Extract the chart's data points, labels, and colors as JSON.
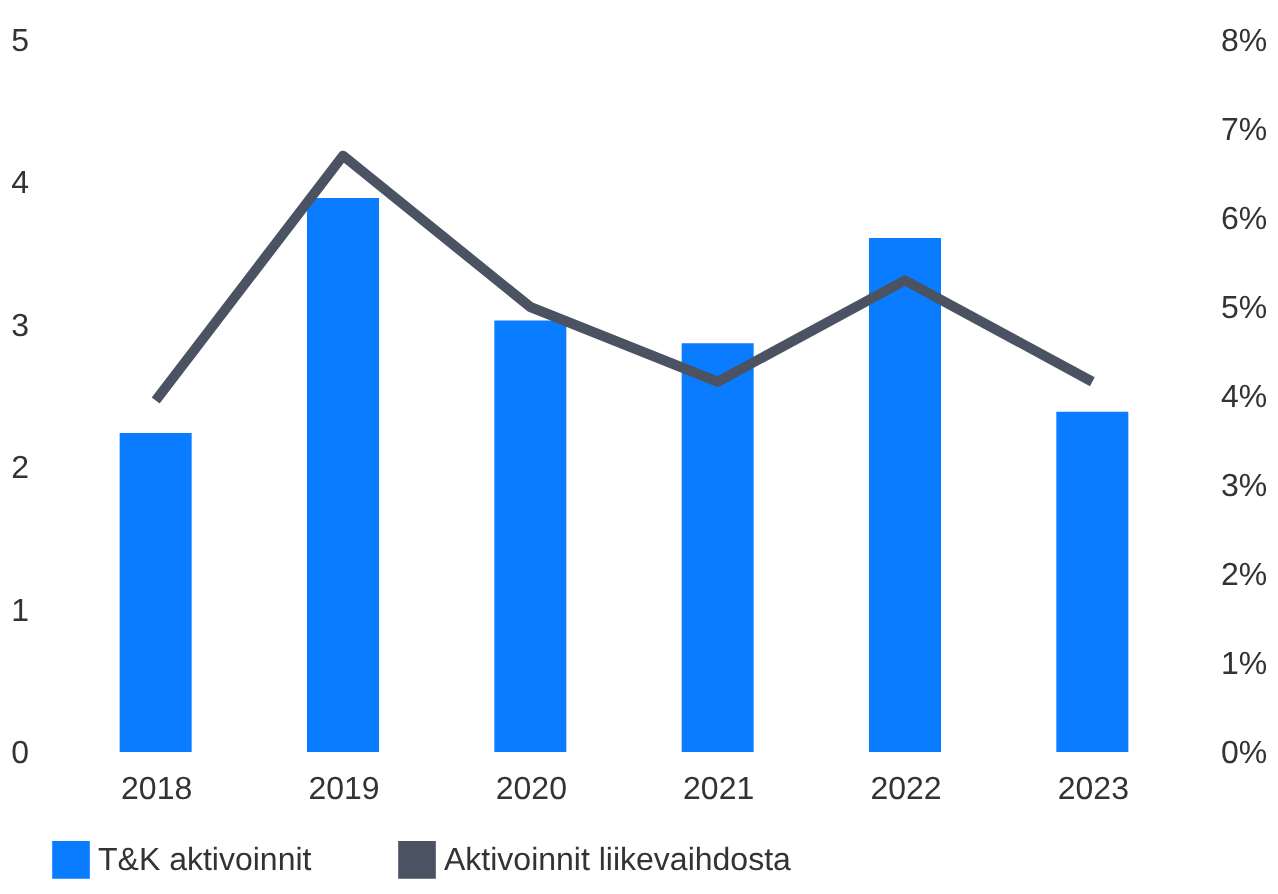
{
  "chart_data": {
    "type": "bar",
    "categories": [
      "2018",
      "2019",
      "2020",
      "2021",
      "2022",
      "2023"
    ],
    "series": [
      {
        "name": "T&K aktivoinnit",
        "color": "#0a7cff",
        "values": [
          2.24,
          3.89,
          3.03,
          2.87,
          3.61,
          2.39
        ]
      },
      {
        "name": "Aktivoinnit liikevaihdosta",
        "type": "line",
        "axis": "y2",
        "color": "#4b5262",
        "values": [
          3.95,
          6.7,
          5.0,
          4.16,
          5.3,
          4.16
        ]
      }
    ],
    "ylim": [
      0,
      5
    ],
    "yticks": [
      0,
      1,
      2,
      3,
      4,
      5
    ],
    "y2lim": [
      0,
      8
    ],
    "y2ticks": [
      {
        "value": 0,
        "label": "0%"
      },
      {
        "value": 1,
        "label": "1%"
      },
      {
        "value": 2,
        "label": "2%"
      },
      {
        "value": 3,
        "label": "3%"
      },
      {
        "value": 4,
        "label": "4%"
      },
      {
        "value": 5,
        "label": "5%"
      },
      {
        "value": 6,
        "label": "6%"
      },
      {
        "value": 7,
        "label": "7%"
      },
      {
        "value": 8,
        "label": "8%"
      }
    ],
    "grid": false,
    "legend": "bottom",
    "marker": "none",
    "line_style": "solid"
  }
}
